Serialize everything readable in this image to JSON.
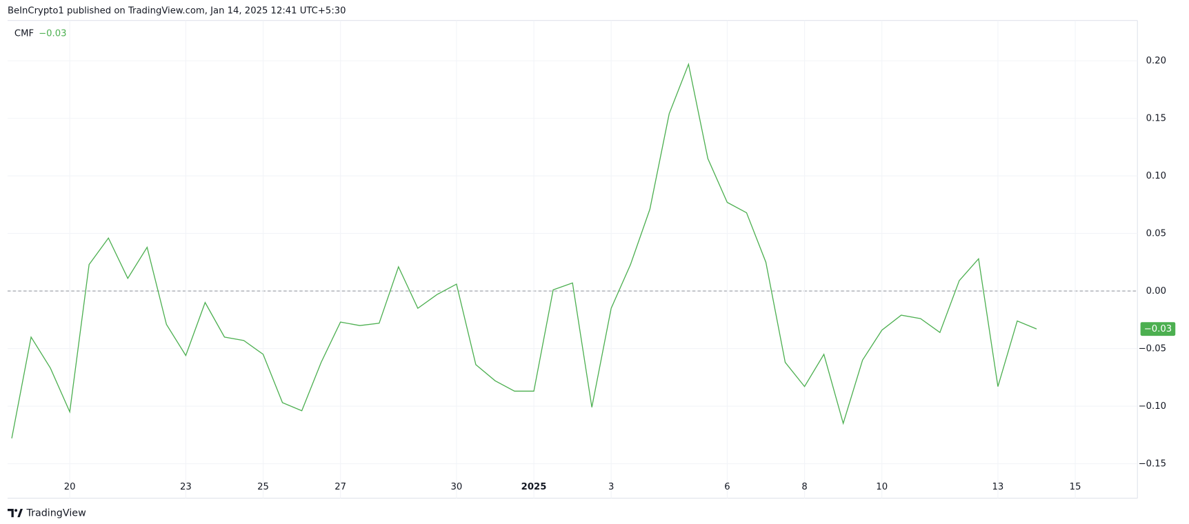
{
  "header": {
    "text": "BeInCrypto1 published on TradingView.com, Jan 14, 2025 12:41 UTC+5:30"
  },
  "footer": {
    "brand": "TradingView"
  },
  "chart_data": {
    "type": "line",
    "categories": [
      null,
      null,
      null,
      "20",
      null,
      null,
      null,
      null,
      null,
      "23",
      null,
      null,
      null,
      "25",
      null,
      null,
      null,
      "27",
      null,
      null,
      null,
      null,
      null,
      "30",
      null,
      null,
      null,
      "2025",
      null,
      null,
      null,
      "3",
      null,
      null,
      null,
      null,
      null,
      "6",
      null,
      null,
      null,
      "8",
      null,
      null,
      null,
      "10",
      null,
      null,
      null,
      null,
      null,
      "13",
      null,
      null,
      null,
      "15",
      null
    ],
    "series": [
      {
        "name": "CMF",
        "color": "#4caf50",
        "values": [
          -0.128,
          -0.04,
          -0.067,
          -0.105,
          0.023,
          0.046,
          0.011,
          0.038,
          -0.029,
          -0.056,
          -0.01,
          -0.04,
          -0.043,
          -0.055,
          -0.097,
          -0.104,
          -0.062,
          -0.027,
          -0.03,
          -0.028,
          0.021,
          -0.015,
          -0.003,
          0.006,
          -0.064,
          -0.078,
          -0.087,
          -0.087,
          0.001,
          0.007,
          -0.101,
          -0.015,
          0.023,
          0.071,
          0.154,
          0.197,
          0.115,
          0.077,
          0.068,
          0.025,
          -0.062,
          -0.083,
          -0.055,
          -0.115,
          -0.06,
          -0.034,
          -0.021,
          -0.024,
          -0.036,
          0.009,
          0.028,
          -0.083,
          -0.026,
          -0.033,
          null,
          null,
          null
        ],
        "value_labels": [
          null,
          null,
          null,
          null,
          null,
          null,
          null,
          null,
          null,
          null,
          null,
          null,
          null,
          null,
          null,
          null,
          null,
          null,
          null,
          null,
          null,
          null,
          null,
          null,
          null,
          null,
          null,
          null,
          null,
          null,
          null,
          null,
          null,
          null,
          null,
          null,
          null,
          null,
          null,
          null,
          null,
          null,
          null,
          null,
          null,
          null,
          null,
          null,
          null,
          null,
          null,
          null,
          null,
          "−0.03",
          null,
          null,
          null
        ]
      }
    ],
    "ylim": [
      -0.18,
      0.235
    ],
    "yticks": [
      {
        "value": 0.2,
        "label": "0.20"
      },
      {
        "value": 0.15,
        "label": "0.15"
      },
      {
        "value": 0.1,
        "label": "0.10"
      },
      {
        "value": 0.05,
        "label": "0.05"
      },
      {
        "value": 0,
        "label": "0.00"
      },
      {
        "value": -0.05,
        "label": "−0.05"
      },
      {
        "value": -0.1,
        "label": "−0.10"
      },
      {
        "value": -0.15,
        "label": "−0.15"
      }
    ],
    "grid": true,
    "zero_line": true
  }
}
